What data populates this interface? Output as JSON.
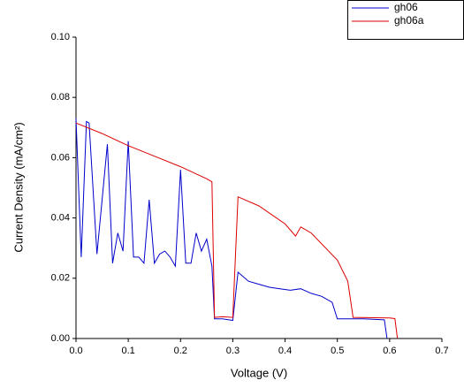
{
  "chart_data": {
    "type": "line",
    "xlabel": "Voltage (V)",
    "ylabel": "Current Density (mA/cm²)",
    "xlim": [
      0,
      0.7
    ],
    "ylim": [
      0,
      0.1
    ],
    "xticks": [
      {
        "value": 0,
        "label": "0.0"
      },
      0.1,
      0.2,
      0.3,
      0.4,
      0.5,
      0.6,
      0.7
    ],
    "yticks": [
      {
        "value": 0,
        "label": "0.00"
      },
      0.02,
      0.04,
      0.06,
      0.08,
      {
        "value": 0.1,
        "label": "0.10"
      }
    ],
    "legend": "top-right",
    "series": [
      {
        "name": "gh06",
        "color": "#0000cc",
        "x": [
          0,
          0.01,
          0.02,
          0.025,
          0.04,
          0.06,
          0.07,
          0.08,
          0.09,
          0.1,
          0.11,
          0.12,
          0.13,
          0.14,
          0.15,
          0.16,
          0.17,
          0.18,
          0.19,
          0.2,
          0.21,
          0.22,
          0.23,
          0.24,
          0.25,
          0.26,
          0.265,
          0.28,
          0.3,
          0.31,
          0.33,
          0.35,
          0.37,
          0.39,
          0.41,
          0.43,
          0.45,
          0.47,
          0.49,
          0.5,
          0.55,
          0.59,
          0.595
        ],
        "values": [
          0.073,
          0.027,
          0.072,
          0.0715,
          0.028,
          0.0645,
          0.025,
          0.035,
          0.029,
          0.0655,
          0.027,
          0.027,
          0.025,
          0.046,
          0.025,
          0.028,
          0.029,
          0.027,
          0.024,
          0.056,
          0.025,
          0.025,
          0.035,
          0.029,
          0.033,
          0.024,
          0.0065,
          0.0065,
          0.006,
          0.022,
          0.019,
          0.018,
          0.017,
          0.0165,
          0.016,
          0.0165,
          0.015,
          0.014,
          0.012,
          0.0065,
          0.0065,
          0.0062,
          0
        ]
      },
      {
        "name": "gh06a",
        "color": "#dd0000",
        "x": [
          0,
          0.05,
          0.1,
          0.15,
          0.2,
          0.25,
          0.26,
          0.265,
          0.28,
          0.3,
          0.31,
          0.35,
          0.4,
          0.42,
          0.43,
          0.45,
          0.5,
          0.52,
          0.53,
          0.6,
          0.61,
          0.615
        ],
        "values": [
          0.0715,
          0.068,
          0.064,
          0.0605,
          0.057,
          0.053,
          0.052,
          0.007,
          0.0072,
          0.007,
          0.047,
          0.044,
          0.038,
          0.034,
          0.037,
          0.035,
          0.026,
          0.019,
          0.007,
          0.0068,
          0.0066,
          0
        ]
      }
    ]
  }
}
